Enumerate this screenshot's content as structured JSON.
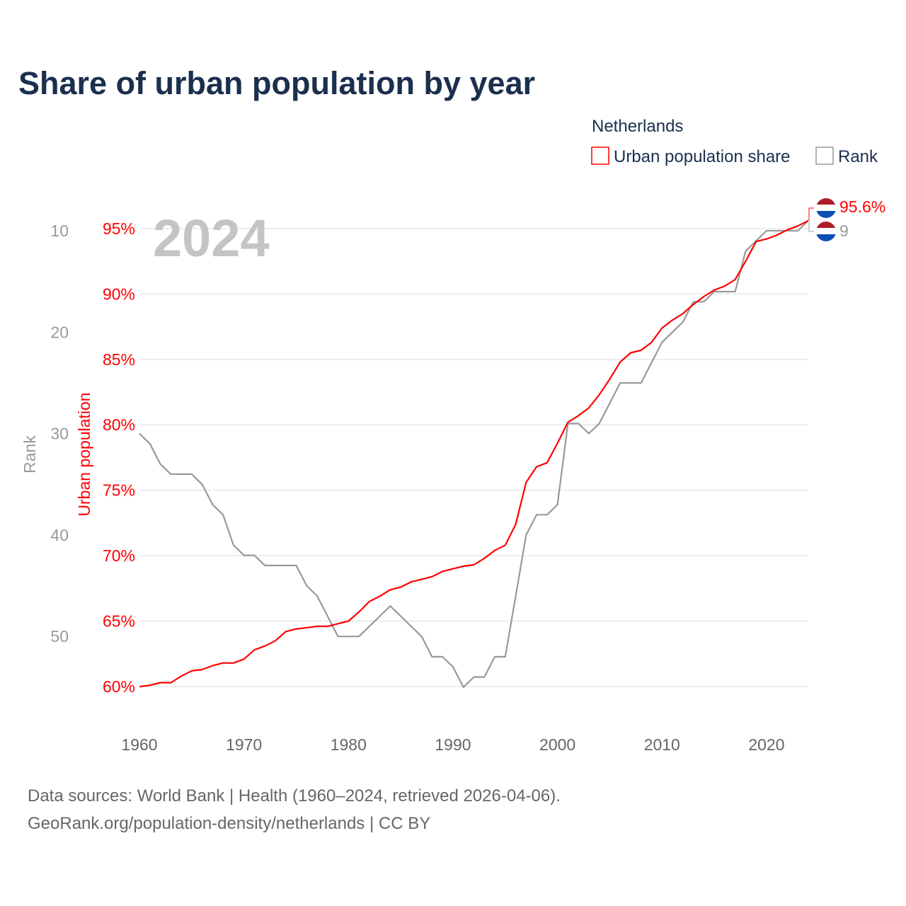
{
  "chart_data": {
    "type": "line",
    "title": "Share of urban population by year",
    "legend": {
      "title": "Netherlands",
      "placement": "top-right",
      "entries": [
        "Urban population share",
        "Rank"
      ]
    },
    "watermark_year": "2024",
    "xlabel": "",
    "ylabel_left_primary": "Urban population",
    "ylabel_left_secondary": "Rank",
    "xlim": [
      1960,
      2024
    ],
    "x_ticks": [
      "1960",
      "1970",
      "1980",
      "1990",
      "2000",
      "2010",
      "2020"
    ],
    "y_ticks_share": [
      "60%",
      "65%",
      "70%",
      "75%",
      "80%",
      "85%",
      "90%",
      "95%"
    ],
    "y_ticks_rank": [
      "10",
      "20",
      "30",
      "40",
      "50"
    ],
    "grid": true,
    "x": [
      1960,
      1961,
      1962,
      1963,
      1964,
      1965,
      1966,
      1967,
      1968,
      1969,
      1970,
      1971,
      1972,
      1973,
      1974,
      1975,
      1976,
      1977,
      1978,
      1979,
      1980,
      1981,
      1982,
      1983,
      1984,
      1985,
      1986,
      1987,
      1988,
      1989,
      1990,
      1991,
      1992,
      1993,
      1994,
      1995,
      1996,
      1997,
      1998,
      1999,
      2000,
      2001,
      2002,
      2003,
      2004,
      2005,
      2006,
      2007,
      2008,
      2009,
      2010,
      2011,
      2012,
      2013,
      2014,
      2015,
      2016,
      2017,
      2018,
      2019,
      2020,
      2021,
      2022,
      2023,
      2024
    ],
    "series": [
      {
        "name": "Urban population share",
        "unit": "%",
        "color": "#ff0000",
        "values": [
          60.0,
          60.1,
          60.3,
          60.3,
          60.8,
          61.2,
          61.3,
          61.6,
          61.8,
          61.8,
          62.1,
          62.8,
          63.1,
          63.5,
          64.2,
          64.4,
          64.5,
          64.6,
          64.6,
          64.8,
          65.0,
          65.7,
          66.5,
          66.9,
          67.4,
          67.6,
          68.0,
          68.2,
          68.4,
          68.8,
          69.0,
          69.2,
          69.3,
          69.8,
          70.4,
          70.8,
          72.4,
          75.6,
          76.8,
          77.1,
          78.6,
          80.2,
          80.7,
          81.3,
          82.3,
          83.5,
          84.8,
          85.5,
          85.7,
          86.3,
          87.4,
          88.0,
          88.5,
          89.2,
          89.8,
          90.3,
          90.6,
          91.1,
          92.5,
          94.0,
          94.2,
          94.5,
          94.9,
          95.2,
          95.6
        ],
        "end_label": "95.6%"
      },
      {
        "name": "Rank",
        "color": "#999999",
        "values": [
          30,
          31,
          33,
          34,
          34,
          34,
          35,
          37,
          38,
          41,
          42,
          42,
          43,
          43,
          43,
          43,
          45,
          46,
          48,
          50,
          50,
          50,
          49,
          48,
          47,
          48,
          49,
          50,
          52,
          52,
          53,
          55,
          54,
          54,
          52,
          52,
          46,
          40,
          38,
          38,
          37,
          29,
          29,
          30,
          29,
          27,
          25,
          25,
          25,
          23,
          21,
          20,
          19,
          17,
          17,
          16,
          16,
          16,
          12,
          11,
          10,
          10,
          10,
          10,
          9
        ],
        "end_label": "9"
      }
    ]
  },
  "footer": {
    "line1": "Data sources: World Bank | Health (1960–2024, retrieved 2026-04-06).",
    "line2": "GeoRank.org/population-density/netherlands | CC BY"
  },
  "colors": {
    "title": "#1b2f4e",
    "share": "#ff0000",
    "rank": "#999999",
    "watermark": "#c4c4c4",
    "grid": "#e8e8e8"
  }
}
